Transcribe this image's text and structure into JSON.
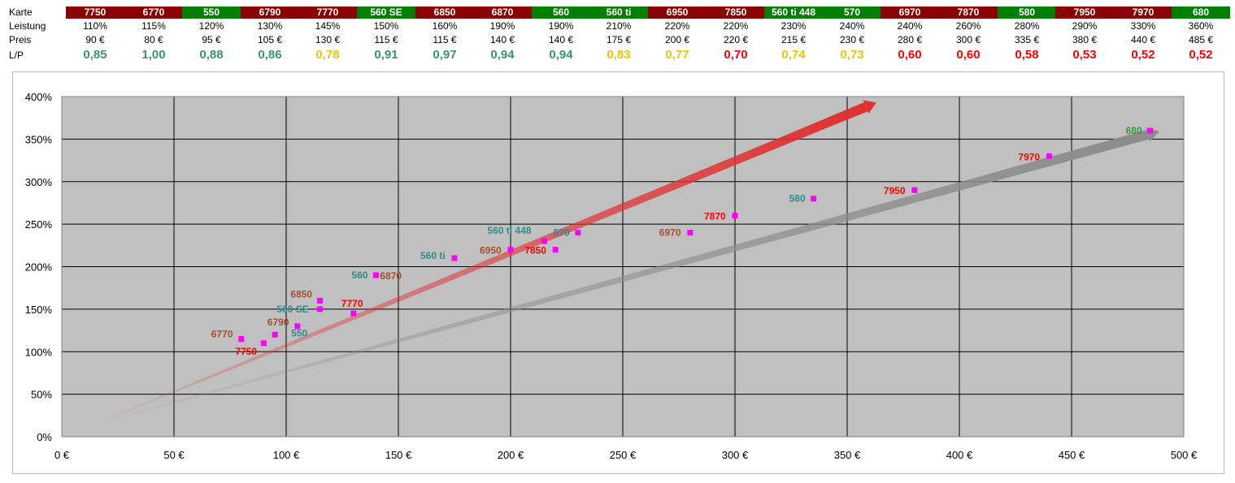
{
  "table": {
    "row_labels": {
      "karte": "Karte",
      "leistung": "Leistung",
      "preis": "Preis",
      "lp": "L/P"
    },
    "columns": [
      {
        "karte": "7750",
        "leistung": "110%",
        "preis": "90 €",
        "lp": "0,85",
        "head_color": "#8b0000",
        "lp_color": "#339966"
      },
      {
        "karte": "6770",
        "leistung": "115%",
        "preis": "80 €",
        "lp": "1,00",
        "head_color": "#8b0000",
        "lp_color": "#339966"
      },
      {
        "karte": "550",
        "leistung": "120%",
        "preis": "95 €",
        "lp": "0,88",
        "head_color": "#008000",
        "lp_color": "#339966"
      },
      {
        "karte": "6790",
        "leistung": "130%",
        "preis": "105 €",
        "lp": "0,86",
        "head_color": "#8b0000",
        "lp_color": "#339966"
      },
      {
        "karte": "7770",
        "leistung": "145%",
        "preis": "130 €",
        "lp": "0,78",
        "head_color": "#8b0000",
        "lp_color": "#f5c000"
      },
      {
        "karte": "560 SE",
        "leistung": "150%",
        "preis": "115 €",
        "lp": "0,91",
        "head_color": "#008000",
        "lp_color": "#339966"
      },
      {
        "karte": "6850",
        "leistung": "160%",
        "preis": "115 €",
        "lp": "0,97",
        "head_color": "#8b0000",
        "lp_color": "#339966"
      },
      {
        "karte": "6870",
        "leistung": "190%",
        "preis": "140 €",
        "lp": "0,94",
        "head_color": "#8b0000",
        "lp_color": "#339966"
      },
      {
        "karte": "560",
        "leistung": "190%",
        "preis": "140 €",
        "lp": "0,94",
        "head_color": "#008000",
        "lp_color": "#339966"
      },
      {
        "karte": "560 ti",
        "leistung": "210%",
        "preis": "175 €",
        "lp": "0,83",
        "head_color": "#008000",
        "lp_color": "#f5c000"
      },
      {
        "karte": "6950",
        "leistung": "220%",
        "preis": "200 €",
        "lp": "0,77",
        "head_color": "#8b0000",
        "lp_color": "#f5c000"
      },
      {
        "karte": "7850",
        "leistung": "220%",
        "preis": "220 €",
        "lp": "0,70",
        "head_color": "#8b0000",
        "lp_color": "#ff0000"
      },
      {
        "karte": "560 ti 448",
        "leistung": "230%",
        "preis": "215 €",
        "lp": "0,74",
        "head_color": "#008000",
        "lp_color": "#f5c000"
      },
      {
        "karte": "570",
        "leistung": "240%",
        "preis": "230 €",
        "lp": "0,73",
        "head_color": "#008000",
        "lp_color": "#f5c000"
      },
      {
        "karte": "6970",
        "leistung": "240%",
        "preis": "280 €",
        "lp": "0,60",
        "head_color": "#8b0000",
        "lp_color": "#ff0000"
      },
      {
        "karte": "7870",
        "leistung": "260%",
        "preis": "300 €",
        "lp": "0,60",
        "head_color": "#8b0000",
        "lp_color": "#ff0000"
      },
      {
        "karte": "580",
        "leistung": "280%",
        "preis": "335 €",
        "lp": "0,58",
        "head_color": "#008000",
        "lp_color": "#ff0000"
      },
      {
        "karte": "7950",
        "leistung": "290%",
        "preis": "380 €",
        "lp": "0,53",
        "head_color": "#8b0000",
        "lp_color": "#ff0000"
      },
      {
        "karte": "7970",
        "leistung": "330%",
        "preis": "440 €",
        "lp": "0,52",
        "head_color": "#8b0000",
        "lp_color": "#ff0000"
      },
      {
        "karte": "680",
        "leistung": "360%",
        "preis": "485 €",
        "lp": "0,52",
        "head_color": "#008000",
        "lp_color": "#ff0000"
      }
    ]
  },
  "chart_data": {
    "type": "scatter",
    "title": "",
    "xlabel": "",
    "ylabel": "",
    "xlim": [
      0,
      500
    ],
    "ylim": [
      0,
      400
    ],
    "x_ticks": [
      "0 €",
      "50 €",
      "100 €",
      "150 €",
      "200 €",
      "250 €",
      "300 €",
      "350 €",
      "400 €",
      "450 €",
      "500 €"
    ],
    "x_tick_values": [
      0,
      50,
      100,
      150,
      200,
      250,
      300,
      350,
      400,
      450,
      500
    ],
    "y_ticks": [
      "0%",
      "50%",
      "100%",
      "150%",
      "200%",
      "250%",
      "300%",
      "350%",
      "400%"
    ],
    "y_tick_values": [
      0,
      50,
      100,
      150,
      200,
      250,
      300,
      350,
      400
    ],
    "grid": true,
    "plot_background": "#c0c0c0",
    "marker_color": "#ff00ff",
    "points": [
      {
        "label": "7750",
        "x": 90,
        "y": 110,
        "color": "#ff0000"
      },
      {
        "label": "6770",
        "x": 80,
        "y": 115,
        "color": "#a0522d"
      },
      {
        "label": "550",
        "x": 95,
        "y": 120,
        "color": "#2e8b8b"
      },
      {
        "label": "6790",
        "x": 105,
        "y": 130,
        "color": "#a0522d"
      },
      {
        "label": "7770",
        "x": 130,
        "y": 145,
        "color": "#ff0000"
      },
      {
        "label": "560 SE",
        "x": 115,
        "y": 150,
        "color": "#2e8b8b"
      },
      {
        "label": "6850",
        "x": 115,
        "y": 160,
        "color": "#a0522d"
      },
      {
        "label": "6870",
        "x": 140,
        "y": 190,
        "color": "#a0522d"
      },
      {
        "label": "560",
        "x": 140,
        "y": 190,
        "color": "#2e8b8b"
      },
      {
        "label": "560 ti",
        "x": 175,
        "y": 210,
        "color": "#2e8b8b"
      },
      {
        "label": "6950",
        "x": 200,
        "y": 220,
        "color": "#a0522d"
      },
      {
        "label": "7850",
        "x": 220,
        "y": 220,
        "color": "#ff0000"
      },
      {
        "label": "560 ti 448",
        "x": 215,
        "y": 230,
        "color": "#2e8b8b"
      },
      {
        "label": "570",
        "x": 230,
        "y": 240,
        "color": "#2e8b8b"
      },
      {
        "label": "6970",
        "x": 280,
        "y": 240,
        "color": "#a0522d"
      },
      {
        "label": "7870",
        "x": 300,
        "y": 260,
        "color": "#ff0000"
      },
      {
        "label": "580",
        "x": 335,
        "y": 280,
        "color": "#2e8b8b"
      },
      {
        "label": "7950",
        "x": 380,
        "y": 290,
        "color": "#ff0000"
      },
      {
        "label": "7970",
        "x": 440,
        "y": 330,
        "color": "#ff0000"
      },
      {
        "label": "680",
        "x": 485,
        "y": 360,
        "color": "#339933"
      }
    ],
    "trend_arrows": [
      {
        "color": "#e03030",
        "from": [
          15,
          15
        ],
        "to": [
          363,
          393
        ]
      },
      {
        "color": "#8c8c8c",
        "from": [
          15,
          15
        ],
        "to": [
          489,
          359
        ]
      }
    ]
  }
}
